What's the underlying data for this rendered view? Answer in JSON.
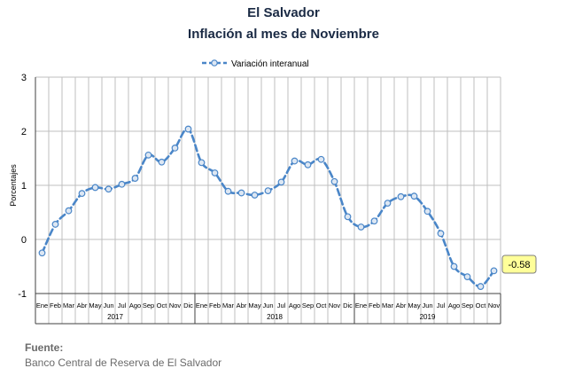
{
  "header": {
    "title": "El Salvador",
    "subtitle": "Inflación al mes de Noviembre"
  },
  "colors": {
    "series": "#4a86c8",
    "marker_fill": "#dde7f3",
    "callout_fill": "#ffff99",
    "grid": "#bfbfbf",
    "axis": "#404040"
  },
  "chart_data": {
    "type": "line",
    "title": "",
    "ylabel": "Porcentajes",
    "xlabel": "",
    "ylim": [
      -1,
      3
    ],
    "yticks": [
      "-1",
      "0",
      "1",
      "2",
      "3"
    ],
    "grid": true,
    "legend_position": "top",
    "month_labels": [
      "Ene",
      "Feb",
      "Mar",
      "Abr",
      "May",
      "Jun",
      "Jul",
      "Ago",
      "Sep",
      "Oct",
      "Nov",
      "Dic"
    ],
    "years": [
      "2017",
      "2018",
      "2019"
    ],
    "series": [
      {
        "name": "Variación interanual",
        "values": [
          -0.25,
          0.28,
          0.53,
          0.85,
          0.96,
          0.93,
          1.02,
          1.13,
          1.56,
          1.43,
          1.69,
          2.04,
          1.42,
          1.23,
          0.89,
          0.86,
          0.82,
          0.9,
          1.06,
          1.45,
          1.38,
          1.48,
          1.07,
          0.42,
          0.23,
          0.34,
          0.67,
          0.79,
          0.8,
          0.52,
          0.11,
          -0.5,
          -0.69,
          -0.87,
          -0.58
        ]
      }
    ],
    "callout": "-0.58"
  },
  "footer": {
    "source_label": "Fuente:",
    "source_text": "Banco Central de Reserva de El Salvador"
  }
}
